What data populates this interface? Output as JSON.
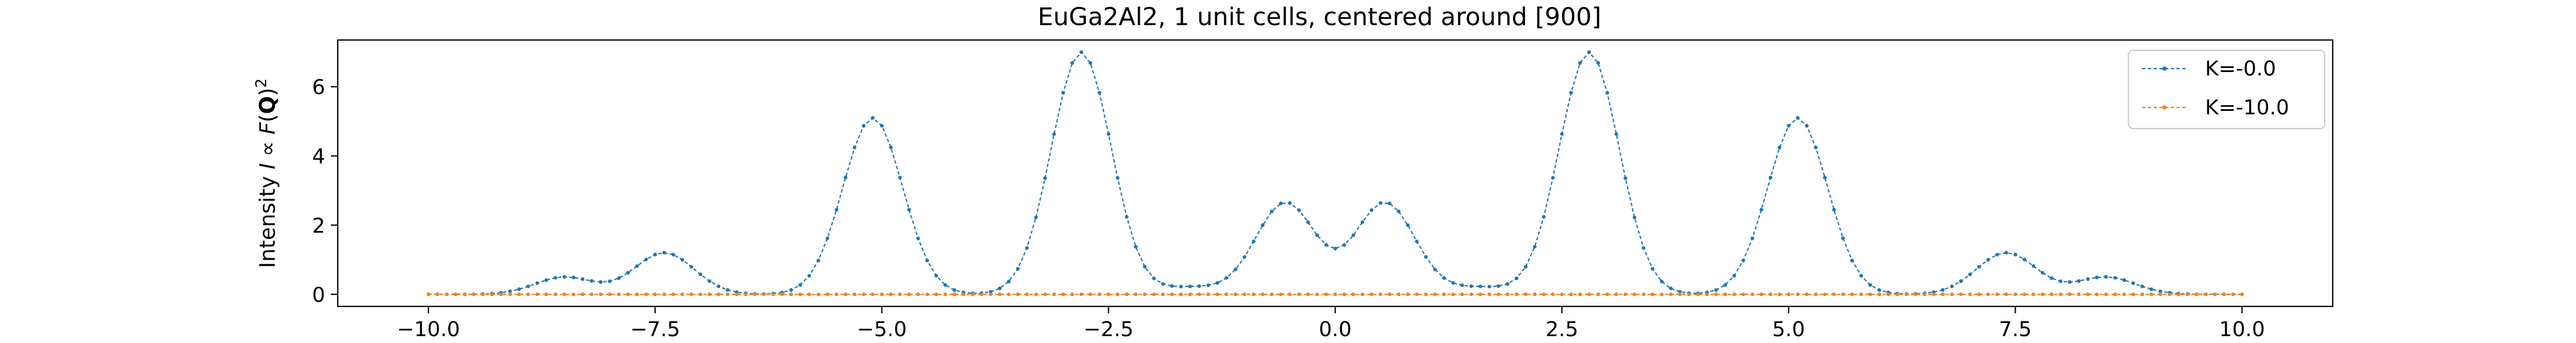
{
  "chart_data": {
    "type": "line",
    "title": "EuGa2Al2, 1 unit cells, centered around [900]",
    "xlabel": "",
    "ylabel": "Intensity I ∝ F(Q)²",
    "xlim": [
      -11.0,
      11.0
    ],
    "ylim": [
      -0.35,
      7.35
    ],
    "x_ticks": [
      -10.0,
      -7.5,
      -5.0,
      -2.5,
      0.0,
      2.5,
      5.0,
      7.5,
      10.0
    ],
    "x_tick_labels": [
      "−10.0",
      "−7.5",
      "−5.0",
      "−2.5",
      "0.0",
      "2.5",
      "5.0",
      "7.5",
      "10.0"
    ],
    "y_ticks": [
      0,
      2,
      4,
      6
    ],
    "y_tick_labels": [
      "0",
      "2",
      "4",
      "6"
    ],
    "grid": false,
    "legend_position": "top-right",
    "series": [
      {
        "name": "K=-0.0",
        "color": "#1f77b4",
        "x_range": [
          -10.0,
          10.0
        ],
        "n_points": 201,
        "peaks": [
          {
            "x": -8.5,
            "y": 0.5
          },
          {
            "x": -7.4,
            "y": 1.2
          },
          {
            "x": -5.1,
            "y": 5.1
          },
          {
            "x": -2.8,
            "y": 7.0
          },
          {
            "x": -1.6,
            "y": 0.2
          },
          {
            "x": -0.55,
            "y": 2.65
          },
          {
            "x": 0.55,
            "y": 2.65
          },
          {
            "x": 1.6,
            "y": 0.2
          },
          {
            "x": 2.8,
            "y": 7.0
          },
          {
            "x": 5.1,
            "y": 5.1
          },
          {
            "x": 7.4,
            "y": 1.2
          },
          {
            "x": 8.5,
            "y": 0.5
          }
        ]
      },
      {
        "name": "K=-10.0",
        "color": "#ff7f0e",
        "x_range": [
          -10.0,
          10.0
        ],
        "n_points": 201,
        "constant_y": 0.0
      }
    ]
  }
}
